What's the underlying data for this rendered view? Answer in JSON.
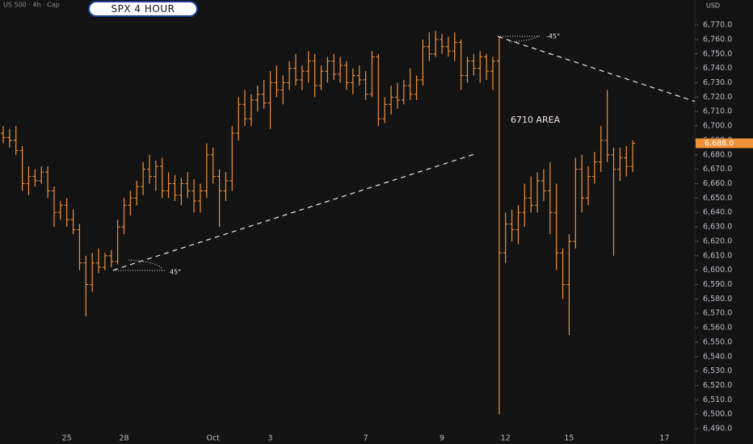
{
  "chart_data": {
    "type": "ohlc",
    "header": "US 500 · 4h · Cap",
    "title": "SPX 4 HOUR",
    "currency": "USD",
    "color": "#f0913a",
    "annotations": {
      "area": "6710 AREA",
      "angle_up": "45°",
      "angle_down": "-45°"
    },
    "trendlines": [
      {
        "from": [
          17.3,
          6600
        ],
        "to": [
          74.5,
          6681
        ]
      },
      {
        "from": [
          77.8,
          6762
        ],
        "to": [
          108.8,
          6717
        ]
      }
    ],
    "last_price": {
      "value": 6688,
      "label": "6,688.0"
    },
    "categories": [
      null,
      null,
      null,
      null,
      null,
      null,
      null,
      null,
      null,
      null,
      "25",
      null,
      null,
      null,
      null,
      null,
      null,
      null,
      null,
      "28",
      null,
      null,
      null,
      null,
      null,
      null,
      null,
      null,
      null,
      null,
      null,
      null,
      null,
      "Oct",
      null,
      null,
      null,
      null,
      null,
      null,
      null,
      null,
      "3",
      null,
      null,
      null,
      null,
      null,
      null,
      null,
      null,
      null,
      null,
      null,
      null,
      null,
      null,
      "7",
      null,
      null,
      null,
      null,
      null,
      null,
      null,
      null,
      null,
      null,
      null,
      "9",
      null,
      null,
      null,
      null,
      null,
      null,
      null,
      null,
      null,
      "12",
      null,
      null,
      null,
      null,
      null,
      null,
      null,
      null,
      null,
      "15",
      null,
      null,
      null,
      null,
      null,
      null,
      null,
      null,
      null,
      null,
      null,
      null,
      null,
      null,
      "17",
      null,
      null,
      null,
      null,
      null
    ],
    "open": [
      6695,
      6692,
      6690,
      6683,
      6660,
      6665,
      6662,
      6668,
      6655,
      6640,
      6645,
      6635,
      6628,
      6605,
      6590,
      6605,
      6602,
      6610,
      6606,
      6630,
      6645,
      6650,
      6658,
      6670,
      6665,
      6672,
      6655,
      6660,
      6652,
      6660,
      6655,
      6648,
      6655,
      6680,
      6665,
      6655,
      6662,
      6695,
      6715,
      6705,
      6718,
      6722,
      6716,
      6730,
      6725,
      6730,
      6740,
      6732,
      6738,
      6745,
      6728,
      6738,
      6745,
      6736,
      6742,
      6730,
      6735,
      6732,
      6722,
      6748,
      6705,
      6715,
      6720,
      6718,
      6728,
      6722,
      6732,
      6755,
      6750,
      6760,
      6755,
      6752,
      6758,
      6735,
      6745,
      6740,
      6748,
      6738,
      6745,
      6612,
      6632,
      6628,
      6640,
      6650,
      6645,
      6662,
      6655,
      6640,
      6612,
      6590,
      6620,
      6670,
      6650,
      6665,
      6675,
      6690,
      6680,
      6670,
      6678,
      6672,
      null,
      null,
      null,
      null,
      null,
      null,
      null,
      null,
      null,
      null
    ],
    "high": [
      6700,
      6698,
      6700,
      6686,
      6672,
      6670,
      6672,
      6672,
      6658,
      6648,
      6650,
      6642,
      6632,
      6610,
      6612,
      6615,
      6612,
      6614,
      6635,
      6650,
      6655,
      6662,
      6675,
      6680,
      6676,
      6678,
      6668,
      6666,
      6664,
      6668,
      6663,
      6660,
      6688,
      6685,
      6670,
      6668,
      6700,
      6720,
      6725,
      6722,
      6728,
      6732,
      6738,
      6742,
      6735,
      6745,
      6750,
      6742,
      6752,
      6750,
      6742,
      6748,
      6750,
      6748,
      6745,
      6740,
      6742,
      6738,
      6752,
      6750,
      6720,
      6728,
      6730,
      6732,
      6740,
      6735,
      6760,
      6765,
      6766,
      6764,
      6762,
      6765,
      6760,
      6748,
      6750,
      6752,
      6750,
      6748,
      6762,
      6640,
      6642,
      6645,
      6660,
      6665,
      6668,
      6670,
      6675,
      6660,
      6615,
      6625,
      6678,
      6680,
      6672,
      6682,
      6700,
      6725,
      6685,
      6685,
      6686,
      6690,
      null,
      null,
      null,
      null,
      null,
      null,
      null,
      null,
      null,
      null
    ],
    "low": [
      6688,
      6685,
      6680,
      6655,
      6652,
      6658,
      6660,
      6650,
      6630,
      6635,
      6630,
      6625,
      6600,
      6568,
      6585,
      6598,
      6600,
      6602,
      6604,
      6625,
      6638,
      6645,
      6652,
      6660,
      6655,
      6650,
      6650,
      6648,
      6645,
      6650,
      6640,
      6640,
      6650,
      6660,
      6630,
      6648,
      6655,
      6690,
      6700,
      6700,
      6710,
      6712,
      6698,
      6720,
      6715,
      6725,
      6728,
      6725,
      6730,
      6720,
      6725,
      6730,
      6732,
      6730,
      6725,
      6722,
      6728,
      6718,
      6720,
      6700,
      6702,
      6708,
      6712,
      6715,
      6718,
      6718,
      6728,
      6745,
      6748,
      6750,
      6748,
      6745,
      6725,
      6730,
      6735,
      6730,
      6732,
      6725,
      6500,
      6605,
      6620,
      6618,
      6630,
      6640,
      6640,
      6648,
      6625,
      6600,
      6580,
      6555,
      6615,
      6640,
      6645,
      6660,
      6668,
      6675,
      6610,
      6662,
      6665,
      6668,
      null,
      null,
      null,
      null,
      null,
      null,
      null,
      null,
      null,
      null
    ],
    "close": [
      6692,
      6690,
      6683,
      6660,
      6665,
      6662,
      6668,
      6655,
      6640,
      6645,
      6635,
      6628,
      6605,
      6590,
      6605,
      6602,
      6610,
      6606,
      6630,
      6645,
      6650,
      6658,
      6670,
      6665,
      6672,
      6655,
      6660,
      6652,
      6660,
      6655,
      6648,
      6655,
      6680,
      6665,
      6655,
      6662,
      6695,
      6715,
      6705,
      6718,
      6722,
      6716,
      6730,
      6725,
      6730,
      6740,
      6732,
      6738,
      6745,
      6728,
      6738,
      6745,
      6736,
      6742,
      6730,
      6735,
      6732,
      6722,
      6748,
      6705,
      6715,
      6720,
      6718,
      6728,
      6722,
      6732,
      6755,
      6750,
      6760,
      6755,
      6752,
      6758,
      6735,
      6745,
      6740,
      6748,
      6738,
      6745,
      6612,
      6632,
      6628,
      6640,
      6650,
      6645,
      6662,
      6655,
      6640,
      6612,
      6590,
      6620,
      6670,
      6650,
      6665,
      6675,
      6690,
      6680,
      6670,
      6678,
      6672,
      6688,
      null,
      null,
      null,
      null,
      null,
      null,
      null,
      null,
      null,
      null
    ],
    "ylim": [
      6479.4,
      6787.4
    ],
    "yticks": [
      {
        "value": 6490,
        "label": "6,490.0"
      },
      {
        "value": 6500,
        "label": "6,500.0"
      },
      {
        "value": 6510,
        "label": "6,510.0"
      },
      {
        "value": 6520,
        "label": "6,520.0"
      },
      {
        "value": 6530,
        "label": "6,530.0"
      },
      {
        "value": 6540,
        "label": "6,540.0"
      },
      {
        "value": 6550,
        "label": "6,550.0"
      },
      {
        "value": 6560,
        "label": "6,560.0"
      },
      {
        "value": 6570,
        "label": "6,570.0"
      },
      {
        "value": 6580,
        "label": "6,580.0"
      },
      {
        "value": 6590,
        "label": "6,590.0"
      },
      {
        "value": 6600,
        "label": "6,600.0"
      },
      {
        "value": 6610,
        "label": "6,610.0"
      },
      {
        "value": 6620,
        "label": "6,620.0"
      },
      {
        "value": 6630,
        "label": "6,630.0"
      },
      {
        "value": 6640,
        "label": "6,640.0"
      },
      {
        "value": 6650,
        "label": "6,650.0"
      },
      {
        "value": 6660,
        "label": "6,660.0"
      },
      {
        "value": 6670,
        "label": "6,670.0"
      },
      {
        "value": 6680,
        "label": "6,680.0"
      },
      {
        "value": 6690,
        "label": "6,690.0"
      },
      {
        "value": 6700,
        "label": "6,700.0"
      },
      {
        "value": 6710,
        "label": "6,710.0"
      },
      {
        "value": 6720,
        "label": "6,720.0"
      },
      {
        "value": 6730,
        "label": "6,730.0"
      },
      {
        "value": 6740,
        "label": "6,740.0"
      },
      {
        "value": 6750,
        "label": "6,750.0"
      },
      {
        "value": 6760,
        "label": "6,760.0"
      },
      {
        "value": 6770,
        "label": "6,770.0"
      }
    ],
    "grid": false
  }
}
